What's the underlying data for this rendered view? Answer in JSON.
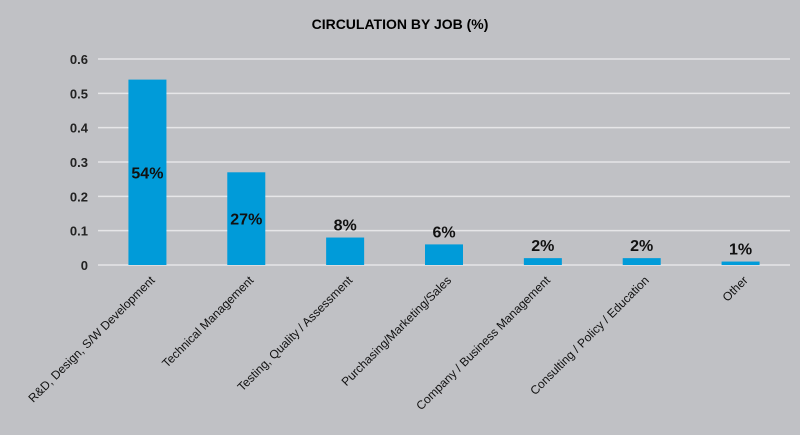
{
  "chart_data": {
    "type": "bar",
    "title": "CIRCULATION BY JOB (%)",
    "xlabel": "",
    "ylabel": "",
    "ylim": [
      0,
      0.6
    ],
    "yticks": [
      "0",
      "0.1",
      "0.2",
      "0.3",
      "0.4",
      "0.5",
      "0.6"
    ],
    "grid": true,
    "categories": [
      "R&D, Design, S/W Development",
      "Technical Management",
      "Testing, Quality / Assessment",
      "Purchasing/Marketing/Sales",
      "Company / Business Management",
      "Consulting / Policy / Education",
      "Other"
    ],
    "values": [
      0.54,
      0.27,
      0.08,
      0.06,
      0.02,
      0.02,
      0.01
    ],
    "data_labels": [
      "54%",
      "27%",
      "8%",
      "6%",
      "2%",
      "2%",
      "1%"
    ],
    "colors": {
      "bar": "#009bd9",
      "background": "#c0c1c5",
      "grid": "#e6e6e8"
    }
  }
}
